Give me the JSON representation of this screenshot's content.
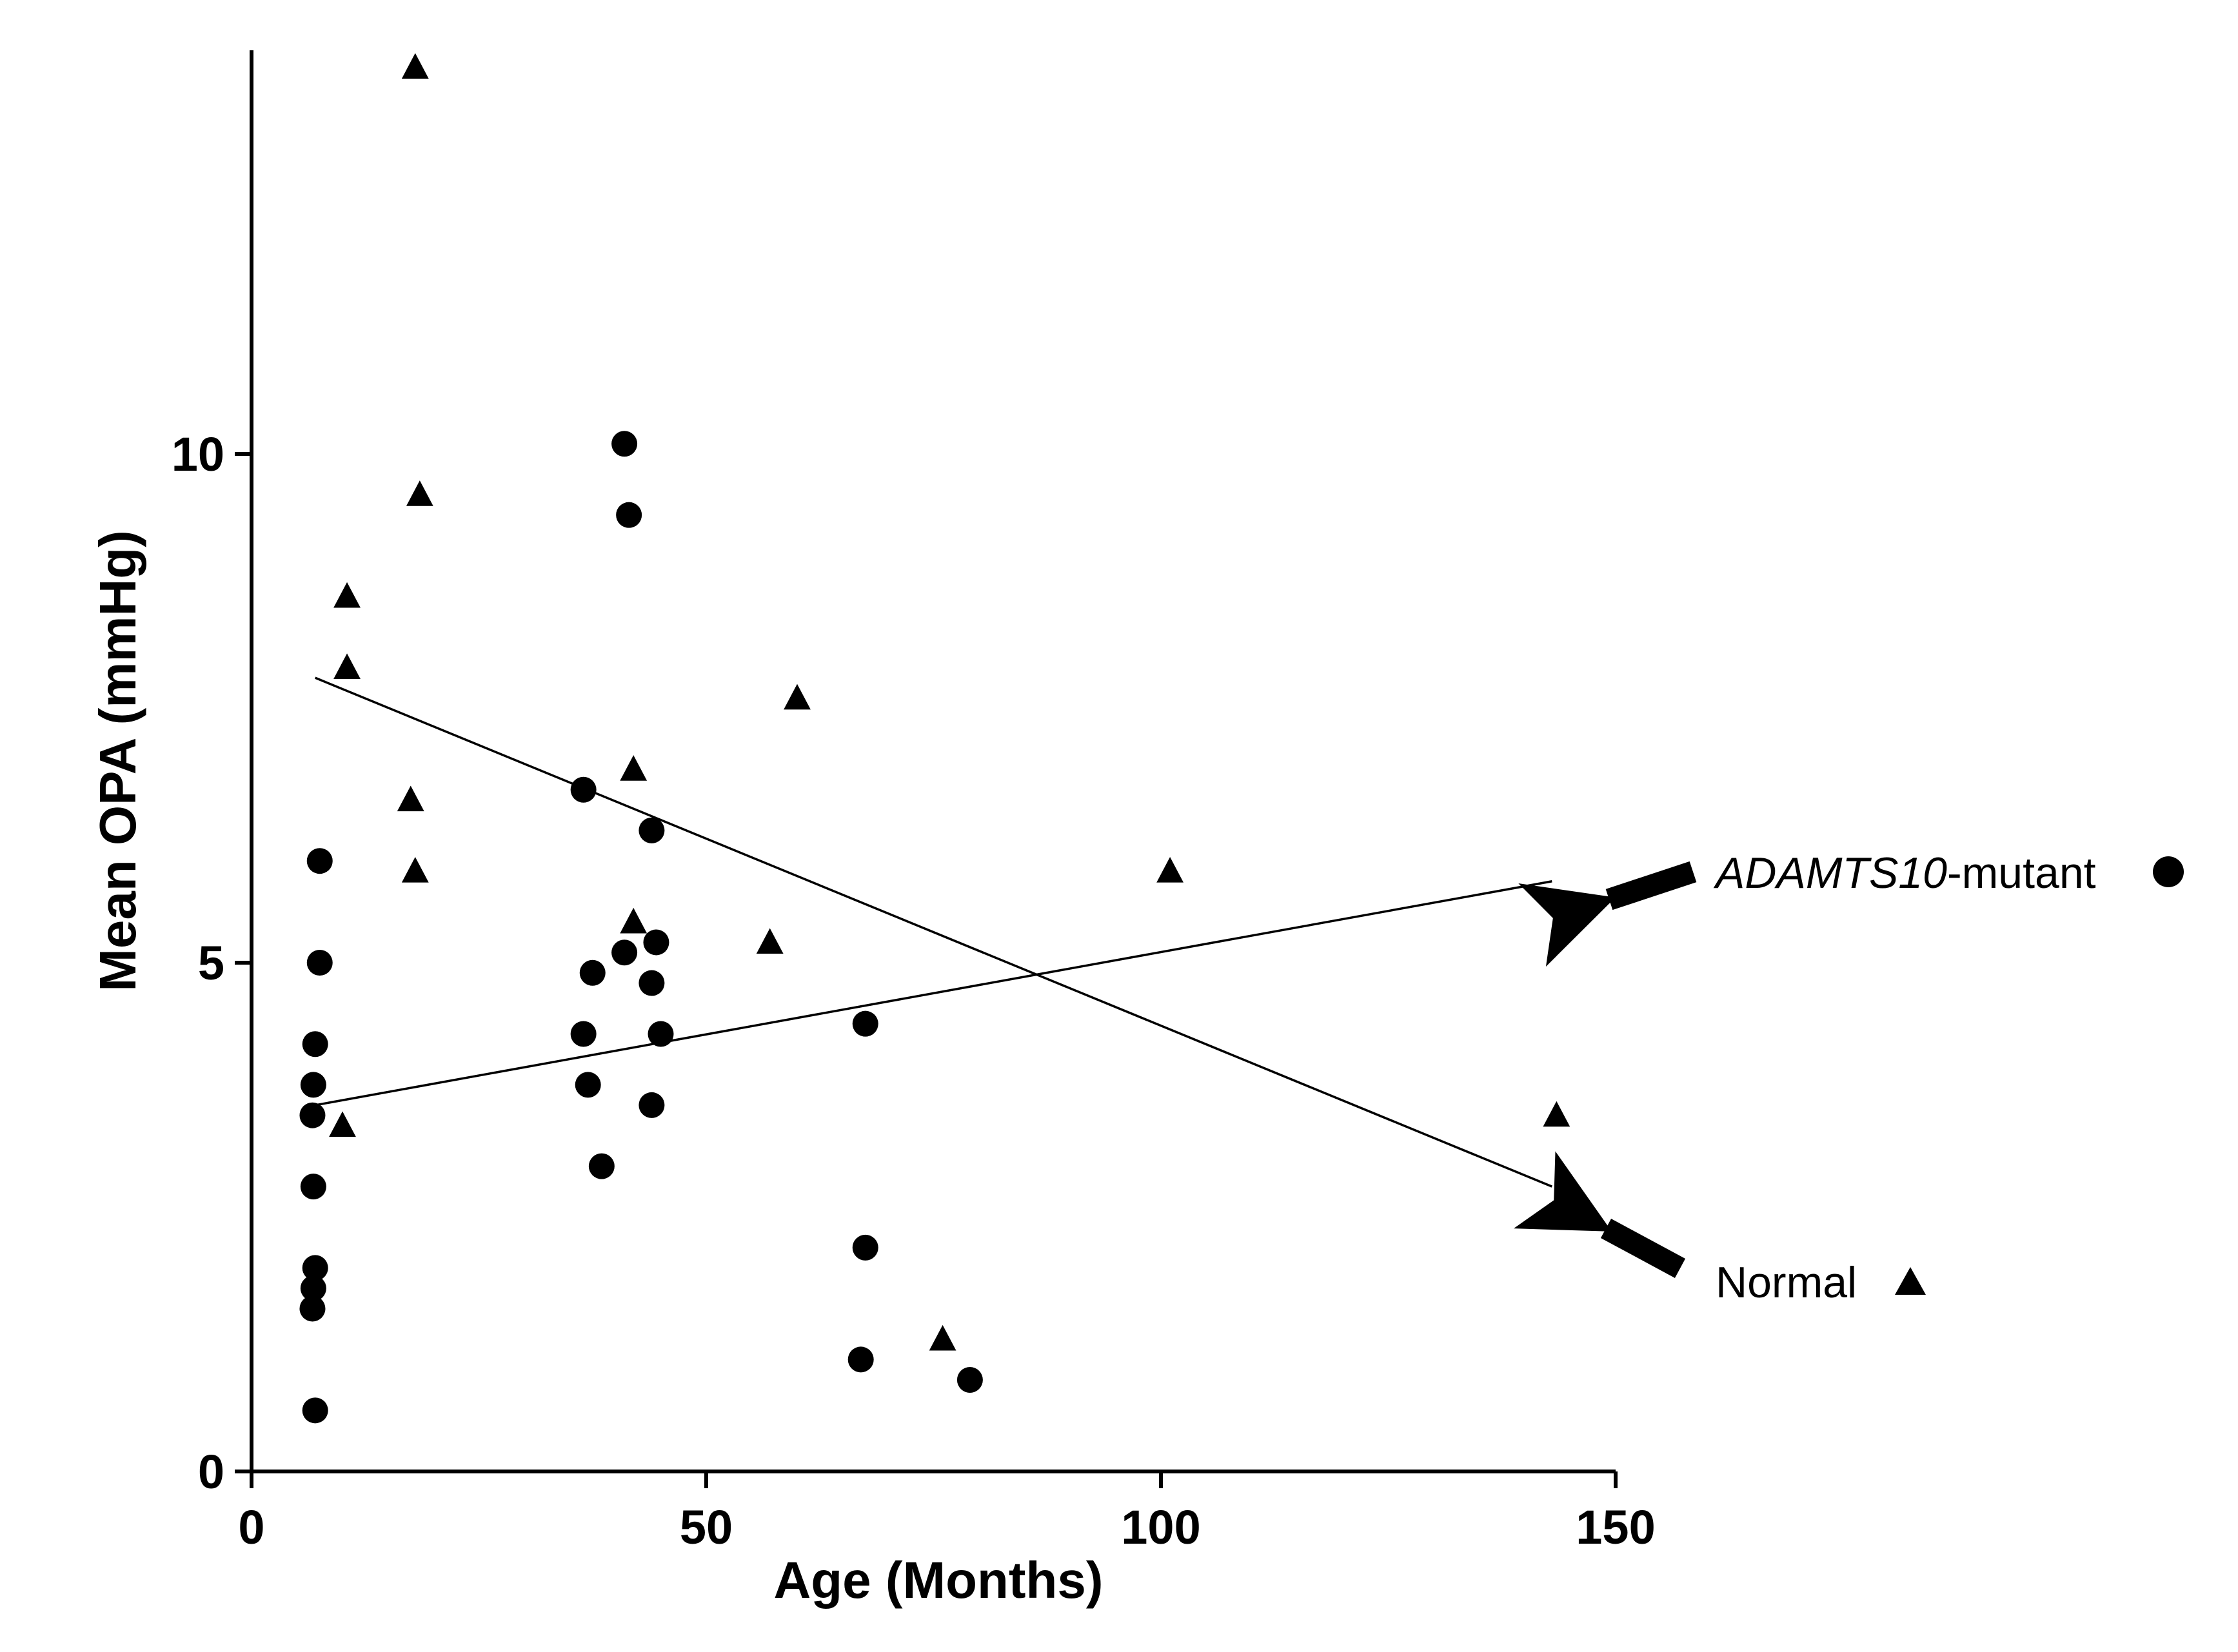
{
  "chart_data": {
    "type": "scatter",
    "xlabel": "Age (Months)",
    "ylabel": "Mean OPA (mmHg)",
    "xlim": [
      0,
      150
    ],
    "ylim": [
      0,
      14
    ],
    "x_ticks": [
      0,
      50,
      100,
      150
    ],
    "y_ticks": [
      0,
      5,
      10
    ],
    "x_tick_labels": [
      "0",
      "50",
      "100",
      "150"
    ],
    "y_tick_labels": [
      "0",
      "5",
      "10"
    ],
    "grid": false,
    "legend_position": "right",
    "series": [
      {
        "name_parts": [
          "ADAMTS10",
          "-mutant"
        ],
        "marker": "circle",
        "points": [
          [
            7.5,
            6.0
          ],
          [
            7.5,
            5.0
          ],
          [
            7,
            4.2
          ],
          [
            6.8,
            3.8
          ],
          [
            6.7,
            3.5
          ],
          [
            6.8,
            2.8
          ],
          [
            7,
            2.0
          ],
          [
            6.8,
            1.8
          ],
          [
            6.7,
            1.6
          ],
          [
            7,
            0.6
          ],
          [
            36.5,
            6.7
          ],
          [
            37.5,
            4.9
          ],
          [
            36.5,
            4.3
          ],
          [
            37,
            3.8
          ],
          [
            38.5,
            3.0
          ],
          [
            41,
            10.1
          ],
          [
            41.5,
            9.4
          ],
          [
            41,
            5.1
          ],
          [
            44,
            6.3
          ],
          [
            44,
            4.8
          ],
          [
            44.5,
            5.2
          ],
          [
            45,
            4.3
          ],
          [
            44,
            3.6
          ],
          [
            67.5,
            4.4
          ],
          [
            67.5,
            2.2
          ],
          [
            67,
            1.1
          ],
          [
            79,
            0.9
          ]
        ],
        "trend": {
          "x": [
            7,
            143
          ],
          "y": [
            3.6,
            5.8
          ]
        }
      },
      {
        "name": "Normal",
        "marker": "triangle",
        "points": [
          [
            18,
            13.8
          ],
          [
            18.5,
            9.6
          ],
          [
            10.5,
            8.6
          ],
          [
            10.5,
            7.9
          ],
          [
            17.5,
            6.6
          ],
          [
            18,
            5.9
          ],
          [
            10,
            3.4
          ],
          [
            42,
            6.9
          ],
          [
            42,
            5.4
          ],
          [
            60,
            7.6
          ],
          [
            57,
            5.2
          ],
          [
            101,
            5.9
          ],
          [
            76,
            1.3
          ],
          [
            143.5,
            3.5
          ]
        ],
        "trend": {
          "x": [
            7,
            143
          ],
          "y": [
            7.8,
            2.8
          ]
        }
      }
    ]
  }
}
